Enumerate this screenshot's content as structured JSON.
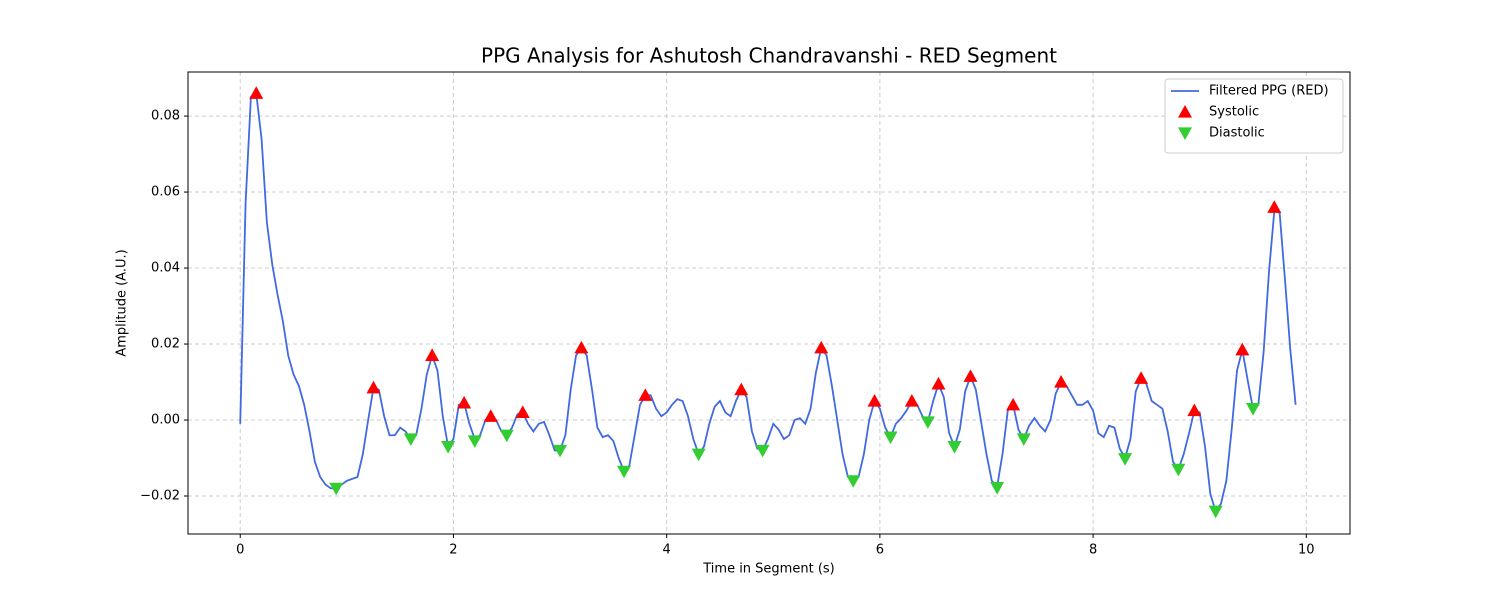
{
  "chart_data": {
    "type": "line",
    "title": "PPG Analysis for Ashutosh Chandravanshi - RED Segment",
    "x_label": "Time in Segment (s)",
    "y_label": "Amplitude (A.U.)",
    "xlim": [
      -0.49,
      10.41
    ],
    "ylim": [
      -0.03,
      0.0916
    ],
    "xticks": [
      0,
      2,
      4,
      6,
      8,
      10
    ],
    "yticks": [
      {
        "value": -0.02,
        "label": "−0.02"
      },
      {
        "value": 0,
        "label": "0.00"
      },
      0.02,
      0.04,
      0.06,
      0.08
    ],
    "grid": true,
    "legend": "upper right",
    "series": [
      {
        "name": "Filtered PPG (RED)",
        "color": "#4169e1",
        "marker": "line",
        "x": [
          0,
          0.05,
          0.1,
          0.15,
          0.2,
          0.25,
          0.3,
          0.35,
          0.4,
          0.45,
          0.5,
          0.55,
          0.6,
          0.65,
          0.7,
          0.75,
          0.8,
          0.85,
          0.9,
          0.95,
          1,
          1.05,
          1.1,
          1.15,
          1.2,
          1.25,
          1.3,
          1.35,
          1.4,
          1.45,
          1.5,
          1.55,
          1.6,
          1.65,
          1.7,
          1.75,
          1.8,
          1.85,
          1.9,
          1.95,
          2,
          2.05,
          2.1,
          2.15,
          2.2,
          2.25,
          2.3,
          2.35,
          2.4,
          2.45,
          2.5,
          2.55,
          2.6,
          2.65,
          2.7,
          2.75,
          2.8,
          2.85,
          2.9,
          2.95,
          3,
          3.05,
          3.1,
          3.15,
          3.2,
          3.25,
          3.3,
          3.35,
          3.4,
          3.45,
          3.5,
          3.55,
          3.6,
          3.65,
          3.7,
          3.75,
          3.8,
          3.85,
          3.9,
          3.95,
          4,
          4.05,
          4.1,
          4.15,
          4.2,
          4.25,
          4.3,
          4.35,
          4.4,
          4.45,
          4.5,
          4.55,
          4.6,
          4.65,
          4.7,
          4.75,
          4.8,
          4.85,
          4.9,
          4.95,
          5,
          5.05,
          5.1,
          5.15,
          5.2,
          5.25,
          5.3,
          5.35,
          5.4,
          5.45,
          5.5,
          5.55,
          5.6,
          5.65,
          5.7,
          5.75,
          5.8,
          5.85,
          5.9,
          5.95,
          6,
          6.05,
          6.1,
          6.15,
          6.2,
          6.25,
          6.3,
          6.35,
          6.4,
          6.45,
          6.5,
          6.55,
          6.6,
          6.65,
          6.7,
          6.75,
          6.8,
          6.85,
          6.9,
          6.95,
          7,
          7.05,
          7.1,
          7.15,
          7.2,
          7.25,
          7.3,
          7.35,
          7.4,
          7.45,
          7.5,
          7.55,
          7.6,
          7.65,
          7.7,
          7.75,
          7.8,
          7.85,
          7.9,
          7.95,
          8,
          8.05,
          8.1,
          8.15,
          8.2,
          8.25,
          8.3,
          8.35,
          8.4,
          8.45,
          8.5,
          8.55,
          8.6,
          8.65,
          8.7,
          8.75,
          8.8,
          8.85,
          8.9,
          8.95,
          9,
          9.05,
          9.1,
          9.15,
          9.2,
          9.25,
          9.3,
          9.35,
          9.4,
          9.45,
          9.5,
          9.55,
          9.6,
          9.65,
          9.7,
          9.75,
          9.8,
          9.85,
          9.9
        ],
        "values": [
          -0.001,
          0.057,
          0.085,
          0.086,
          0.074,
          0.052,
          0.041,
          0.033,
          0.026,
          0.017,
          0.012,
          0.009,
          0.004,
          -0.003,
          -0.011,
          -0.015,
          -0.017,
          -0.018,
          -0.018,
          -0.017,
          -0.016,
          -0.0155,
          -0.015,
          -0.009,
          0.0,
          0.0085,
          0.008,
          0.001,
          -0.004,
          -0.004,
          -0.002,
          -0.003,
          -0.005,
          -0.004,
          0.003,
          0.012,
          0.017,
          0.013,
          0.001,
          -0.007,
          -0.005,
          0.004,
          0.0045,
          -0.001,
          -0.005,
          -0.004,
          0.0,
          0.001,
          0.0,
          -0.003,
          -0.004,
          -0.002,
          0.0015,
          0.002,
          -0.001,
          -0.003,
          -0.001,
          -0.0005,
          -0.004,
          -0.008,
          -0.008,
          -0.004,
          0.008,
          0.017,
          0.019,
          0.017,
          0.008,
          -0.002,
          -0.0045,
          -0.004,
          -0.0055,
          -0.01,
          -0.0135,
          -0.012,
          -0.004,
          0.004,
          0.0065,
          0.0065,
          0.003,
          0.001,
          0.002,
          0.004,
          0.0055,
          0.005,
          0.001,
          -0.005,
          -0.009,
          -0.007,
          -0.001,
          0.0035,
          0.005,
          0.002,
          0.001,
          0.005,
          0.008,
          0.006,
          -0.003,
          -0.0075,
          -0.008,
          -0.005,
          -0.001,
          -0.0025,
          -0.005,
          -0.004,
          0.0,
          0.0005,
          -0.001,
          0.003,
          0.0125,
          0.019,
          0.017,
          0.009,
          0.0,
          -0.009,
          -0.015,
          -0.016,
          -0.015,
          -0.009,
          0.0,
          0.005,
          0.003,
          -0.002,
          -0.0045,
          -0.001,
          0.0005,
          0.0025,
          0.005,
          0.004,
          0.001,
          -0.0005,
          0.005,
          0.0095,
          0.006,
          -0.0035,
          -0.007,
          -0.0025,
          0.0075,
          0.0115,
          0.008,
          -0.0005,
          -0.009,
          -0.016,
          -0.0175,
          -0.009,
          0.0025,
          0.004,
          -0.0025,
          -0.005,
          -0.0015,
          0.0005,
          -0.0015,
          -0.003,
          0.0,
          0.007,
          0.01,
          0.009,
          0.0065,
          0.004,
          0.004,
          0.005,
          0.0025,
          -0.0035,
          -0.0045,
          -0.0015,
          -0.002,
          -0.0075,
          -0.01,
          -0.005,
          0.0075,
          0.011,
          0.0095,
          0.005,
          0.004,
          0.003,
          -0.003,
          -0.011,
          -0.013,
          -0.009,
          -0.0035,
          0.0025,
          0.002,
          -0.007,
          -0.0195,
          -0.024,
          -0.022,
          -0.016,
          -0.0025,
          0.013,
          0.0185,
          0.0105,
          0.003,
          0.004,
          0.018,
          0.039,
          0.055,
          0.0545,
          0.037,
          0.0185,
          0.004
        ]
      },
      {
        "name": "Systolic",
        "color": "#ff0000",
        "marker": "triangle-up",
        "x": [
          0.15,
          1.25,
          1.8,
          2.1,
          2.35,
          2.65,
          3.2,
          3.8,
          4.7,
          5.45,
          5.95,
          6.3,
          6.55,
          6.85,
          7.25,
          7.7,
          8.45,
          8.95,
          9.4,
          9.7
        ],
        "values": [
          0.086,
          0.0085,
          0.017,
          0.0045,
          0.001,
          0.002,
          0.019,
          0.0065,
          0.008,
          0.019,
          0.005,
          0.005,
          0.0095,
          0.0115,
          0.004,
          0.01,
          0.011,
          0.0025,
          0.0185,
          0.056
        ]
      },
      {
        "name": "Diastolic",
        "color": "#32cd32",
        "marker": "triangle-down",
        "x": [
          0.9,
          1.6,
          1.95,
          2.2,
          2.5,
          3.0,
          3.6,
          4.3,
          4.9,
          5.75,
          6.1,
          6.45,
          6.7,
          7.1,
          7.35,
          8.3,
          8.8,
          9.15,
          9.5
        ],
        "values": [
          -0.018,
          -0.005,
          -0.007,
          -0.0055,
          -0.004,
          -0.008,
          -0.0135,
          -0.009,
          -0.008,
          -0.016,
          -0.0045,
          -0.0005,
          -0.007,
          -0.0178,
          -0.005,
          -0.0102,
          -0.013,
          -0.024,
          0.003
        ]
      }
    ]
  }
}
